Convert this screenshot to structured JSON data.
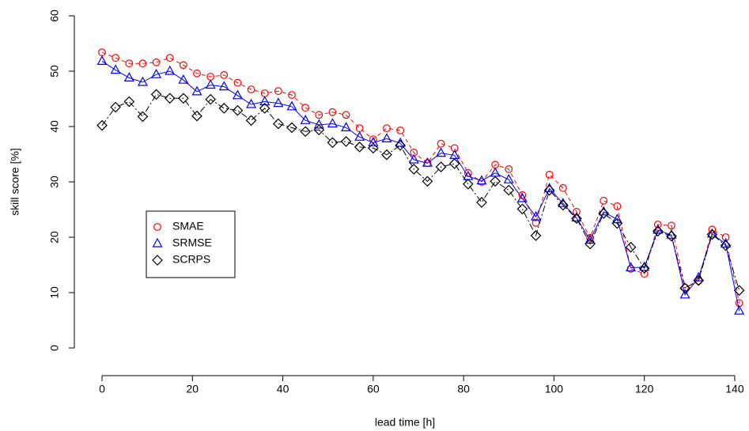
{
  "chart_data": {
    "type": "line",
    "xlabel": "lead time [h]",
    "ylabel": "skill score [%]",
    "x": [
      0,
      3,
      6,
      9,
      12,
      15,
      18,
      21,
      24,
      27,
      30,
      33,
      36,
      39,
      42,
      45,
      48,
      51,
      54,
      57,
      60,
      63,
      66,
      69,
      72,
      75,
      78,
      81,
      84,
      87,
      90,
      93,
      96,
      99,
      102,
      105,
      108,
      111,
      114,
      117,
      120,
      123,
      126,
      129,
      132,
      135,
      138,
      141
    ],
    "series": [
      {
        "name": "SMAE",
        "color": "#ff0000",
        "marker": "circle",
        "line_style": "dashed",
        "values": [
          53.4,
          52.4,
          51.4,
          51.4,
          51.6,
          52.4,
          51.1,
          49.6,
          49,
          49.3,
          47.9,
          46.7,
          46,
          46.4,
          45.7,
          43.4,
          42.1,
          42.6,
          42.1,
          39.7,
          37.7,
          39.7,
          39.3,
          35.3,
          33.4,
          36.9,
          36.1,
          31.6,
          30,
          33.1,
          32.3,
          27.6,
          22.6,
          31.3,
          28.9,
          24.6,
          19.9,
          26.6,
          25.6,
          14.3,
          13.4,
          22.3,
          22.1,
          10.9,
          12.1,
          21.4,
          20,
          8.1
        ]
      },
      {
        "name": "SRMSE",
        "color": "#0000ff",
        "marker": "triangle",
        "line_style": "solid",
        "values": [
          51.8,
          50.2,
          48.8,
          48,
          49.4,
          50,
          48.4,
          46.3,
          47.5,
          47.2,
          45.6,
          44,
          44.5,
          44.2,
          43.6,
          41.1,
          40.3,
          40.5,
          39.8,
          38.1,
          37.1,
          37.8,
          37,
          34,
          33.4,
          35.2,
          34.8,
          31,
          30.2,
          31.6,
          30.4,
          27,
          23.7,
          28.8,
          26.1,
          23.5,
          19.5,
          24.6,
          23.2,
          14.5,
          14.6,
          21.3,
          20.4,
          9.6,
          12.7,
          20.6,
          18.8,
          6.7
        ]
      },
      {
        "name": "SCRPS",
        "color": "#000000",
        "marker": "diamond",
        "line_style": "dashdot",
        "values": [
          40.2,
          43.5,
          44.5,
          41.8,
          45.8,
          45.1,
          45.1,
          41.9,
          44.9,
          43.3,
          42.9,
          41.1,
          43.3,
          40.5,
          39.8,
          39.1,
          39.4,
          37.1,
          37.3,
          36.3,
          36.1,
          34.9,
          36.6,
          32.3,
          30.1,
          32.7,
          33.3,
          29.6,
          26.3,
          30.1,
          28.5,
          25.1,
          20.3,
          28.5,
          25.8,
          23.4,
          18.8,
          24.3,
          22.5,
          18.2,
          14.4,
          21.1,
          20.2,
          10.8,
          12.2,
          20.5,
          18.5,
          10.4
        ]
      }
    ],
    "xlim": [
      -5.64,
      146.64
    ],
    "xticks": [
      0,
      20,
      40,
      60,
      80,
      100,
      120,
      140
    ],
    "ylim": [
      -2.4,
      62.4
    ],
    "yticks": [
      0,
      10,
      20,
      30,
      40,
      50,
      60
    ],
    "legend": "left"
  }
}
